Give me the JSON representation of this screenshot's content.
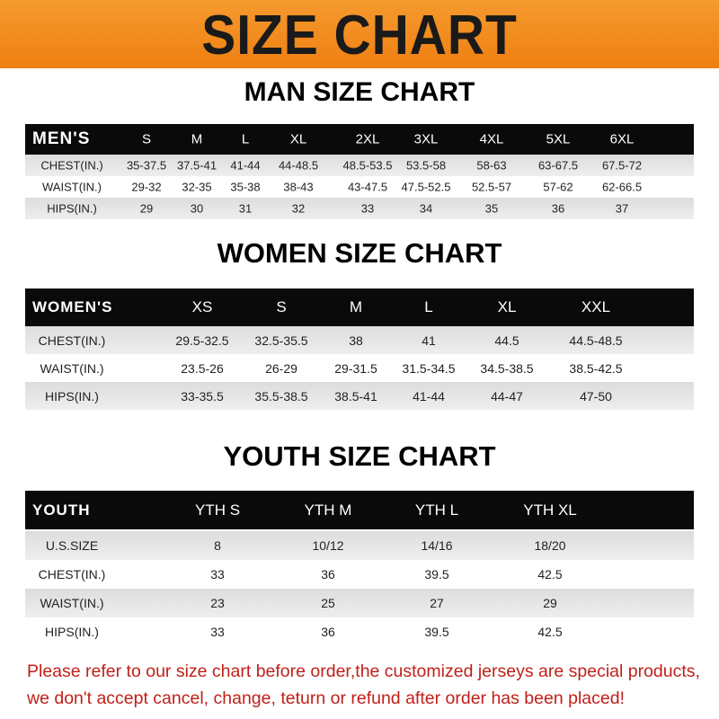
{
  "banner": {
    "title": "SIZE CHART",
    "color": "#f08a1c"
  },
  "men": {
    "title": "MAN SIZE CHART",
    "header": "MEN'S",
    "sizes": [
      "S",
      "M",
      "L",
      "XL",
      "2XL",
      "3XL",
      "4XL",
      "5XL",
      "6XL"
    ],
    "rows": [
      {
        "label": "CHEST(IN.)",
        "values": [
          "35-37.5",
          "37.5-41",
          "41-44",
          "44-48.5",
          "48.5-53.5",
          "53.5-58",
          "58-63",
          "63-67.5",
          "67.5-72"
        ]
      },
      {
        "label": "WAIST(IN.)",
        "values": [
          "29-32",
          "32-35",
          "35-38",
          "38-43",
          "43-47.5",
          "47.5-52.5",
          "52.5-57",
          "57-62",
          "62-66.5"
        ]
      },
      {
        "label": "HIPS(IN.)",
        "values": [
          "29",
          "30",
          "31",
          "32",
          "33",
          "34",
          "35",
          "36",
          "37"
        ]
      }
    ]
  },
  "women": {
    "title": "WOMEN SIZE CHART",
    "header": "WOMEN'S",
    "sizes": [
      "XS",
      "S",
      "M",
      "L",
      "XL",
      "XXL"
    ],
    "rows": [
      {
        "label": "CHEST(IN.)",
        "values": [
          "29.5-32.5",
          "32.5-35.5",
          "38",
          "41",
          "44.5",
          "44.5-48.5"
        ]
      },
      {
        "label": "WAIST(IN.)",
        "values": [
          "23.5-26",
          "26-29",
          "29-31.5",
          "31.5-34.5",
          "34.5-38.5",
          "38.5-42.5"
        ]
      },
      {
        "label": "HIPS(IN.)",
        "values": [
          "33-35.5",
          "35.5-38.5",
          "38.5-41",
          "41-44",
          "44-47",
          "47-50"
        ]
      }
    ]
  },
  "youth": {
    "title": "YOUTH SIZE CHART",
    "header": "YOUTH",
    "sizes": [
      "YTH S",
      "YTH M",
      "YTH L",
      "YTH XL"
    ],
    "rows": [
      {
        "label": "U.S.SIZE",
        "values": [
          "8",
          "10/12",
          "14/16",
          "18/20"
        ]
      },
      {
        "label": "CHEST(IN.)",
        "values": [
          "33",
          "36",
          "39.5",
          "42.5"
        ]
      },
      {
        "label": "WAIST(IN.)",
        "values": [
          "23",
          "25",
          "27",
          "29"
        ]
      },
      {
        "label": "HIPS(IN.)",
        "values": [
          "33",
          "36",
          "39.5",
          "42.5"
        ]
      }
    ]
  },
  "notice": {
    "line1": "Please refer to our size chart before order,the customized jerseys are special products,",
    "line2": "we don't accept cancel, change, teturn or refund after order has been placed!",
    "color": "#c0201a"
  }
}
